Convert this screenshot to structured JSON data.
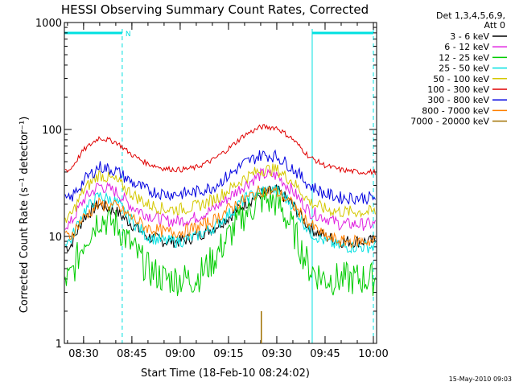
{
  "chart_data": {
    "type": "line",
    "title": "HESSI Observing Summary Count Rates, Corrected",
    "xlabel": "Start Time (18-Feb-10 08:24:02)",
    "ylabel": "Corrected Count Rate (s⁻¹ detector⁻¹)",
    "ylog": true,
    "ylim": [
      1,
      1000
    ],
    "xlim": [
      "08:24:02",
      "10:01"
    ],
    "x_ticks": [
      "08:30",
      "08:45",
      "09:00",
      "09:15",
      "09:30",
      "09:45",
      "10:00"
    ],
    "y_ticks": [
      "1",
      "10",
      "100",
      "1000"
    ],
    "legend_header": [
      "Det 1,3,4,5,6,9,",
      "Att 0"
    ],
    "legend_position": "right",
    "timestamp": "15-May-2010 09:03",
    "night_marker": "N",
    "night_intervals": [
      [
        "08:24",
        "08:42"
      ],
      [
        "09:41",
        "10:00"
      ]
    ],
    "x_hours": [
      8.43,
      8.5,
      8.58,
      8.67,
      8.75,
      8.83,
      8.92,
      9.0,
      9.08,
      9.17,
      9.25,
      9.33,
      9.42,
      9.5,
      9.58,
      9.67,
      9.75,
      9.83,
      9.92,
      10.0
    ],
    "series": [
      {
        "name": "3 - 6 keV",
        "color": "#000000",
        "values": [
          8,
          15,
          20,
          17,
          13,
          10,
          9,
          9,
          10,
          12,
          15,
          20,
          25,
          27,
          20,
          12,
          10,
          9,
          9,
          9
        ]
      },
      {
        "name": "6 - 12 keV",
        "color": "#e020e0",
        "values": [
          13,
          22,
          30,
          26,
          19,
          16,
          14,
          14,
          15,
          18,
          23,
          30,
          38,
          37,
          27,
          17,
          15,
          13,
          13,
          13
        ]
      },
      {
        "name": "12 - 25 keV",
        "color": "#00cc00",
        "values": [
          4,
          9,
          15,
          13,
          8,
          5,
          4,
          4,
          4,
          6,
          10,
          16,
          22,
          21,
          12,
          5,
          4,
          4,
          4,
          4
        ]
      },
      {
        "name": "25 - 50 keV",
        "color": "#00e0e0",
        "values": [
          9,
          17,
          24,
          21,
          14,
          10,
          9,
          9,
          10,
          12,
          16,
          22,
          27,
          27,
          20,
          11,
          9,
          8,
          8,
          8
        ]
      },
      {
        "name": "50 - 100 keV",
        "color": "#d4c800",
        "values": [
          15,
          27,
          38,
          33,
          25,
          20,
          18,
          18,
          19,
          22,
          27,
          35,
          42,
          42,
          33,
          21,
          18,
          17,
          17,
          17
        ]
      },
      {
        "name": "100 - 300 keV",
        "color": "#e00000",
        "values": [
          42,
          64,
          84,
          76,
          58,
          48,
          43,
          42,
          44,
          52,
          66,
          88,
          106,
          104,
          82,
          55,
          46,
          42,
          40,
          40
        ]
      },
      {
        "name": "300 - 800 keV",
        "color": "#0000e0",
        "values": [
          22,
          33,
          45,
          41,
          32,
          27,
          25,
          25,
          26,
          29,
          37,
          48,
          58,
          56,
          44,
          30,
          25,
          23,
          23,
          23
        ]
      },
      {
        "name": "800 - 7000 keV",
        "color": "#ff8000",
        "values": [
          10,
          15,
          20,
          19,
          15,
          12,
          11,
          11,
          12,
          14,
          18,
          22,
          27,
          26,
          20,
          13,
          10,
          9,
          9,
          9
        ]
      },
      {
        "name": "7000 - 20000 keV",
        "color": "#a07000",
        "values": [
          null,
          null,
          null,
          null,
          null,
          null,
          null,
          null,
          null,
          null,
          null,
          null,
          2.0,
          null,
          null,
          null,
          null,
          null,
          null,
          null
        ]
      }
    ]
  }
}
